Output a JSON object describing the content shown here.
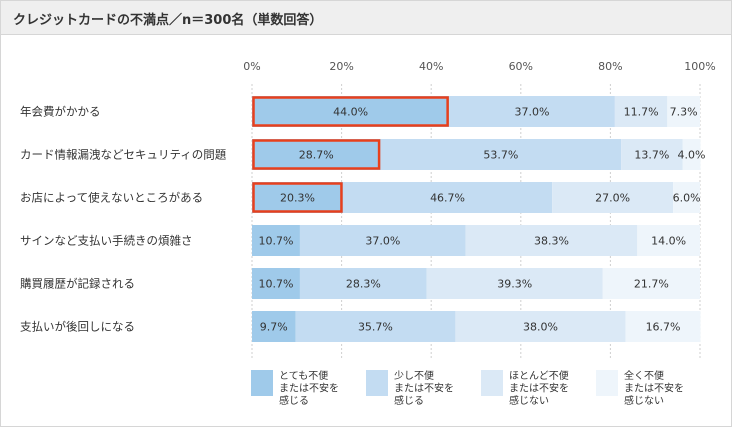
{
  "title": "クレジットカードの不満点／n＝300名（単数回答）",
  "chart_data": {
    "type": "bar",
    "orientation": "horizontal",
    "stacked": true,
    "xlim": [
      0,
      100
    ],
    "tick_labels": [
      "0%",
      "20%",
      "40%",
      "60%",
      "80%",
      "100%"
    ],
    "grid": true,
    "legend_position": "bottom",
    "categories": [
      "年会費がかかる",
      "カード情報漏洩などセキュリティの問題",
      "お店によって使えないところがある",
      "サインなど支払い手続きの煩雑さ",
      "購買履歴が記録される",
      "支払いが後回しになる"
    ],
    "series": [
      {
        "name": [
          "とても不便",
          "または不安を",
          "感じる"
        ],
        "color": "#9fcaea",
        "values": [
          44.0,
          28.7,
          20.3,
          10.7,
          10.7,
          9.7
        ]
      },
      {
        "name": [
          "少し不便",
          "または不安を",
          "感じる"
        ],
        "color": "#c3dcf2",
        "values": [
          37.0,
          53.7,
          46.7,
          37.0,
          28.3,
          35.7
        ]
      },
      {
        "name": [
          "ほとんど不便",
          "または不安を",
          "感じない"
        ],
        "color": "#dbe9f6",
        "values": [
          11.7,
          13.7,
          27.0,
          38.3,
          39.3,
          38.0
        ]
      },
      {
        "name": [
          "全く不便",
          "または不安を",
          "感じない"
        ],
        "color": "#eef5fb",
        "values": [
          7.3,
          4.0,
          6.0,
          14.0,
          21.7,
          16.7
        ]
      }
    ],
    "highlighted": [
      {
        "row": 0,
        "series": 0
      },
      {
        "row": 1,
        "series": 0
      },
      {
        "row": 2,
        "series": 0
      }
    ],
    "highlight_color": "#e8401c",
    "value_format": "%"
  }
}
